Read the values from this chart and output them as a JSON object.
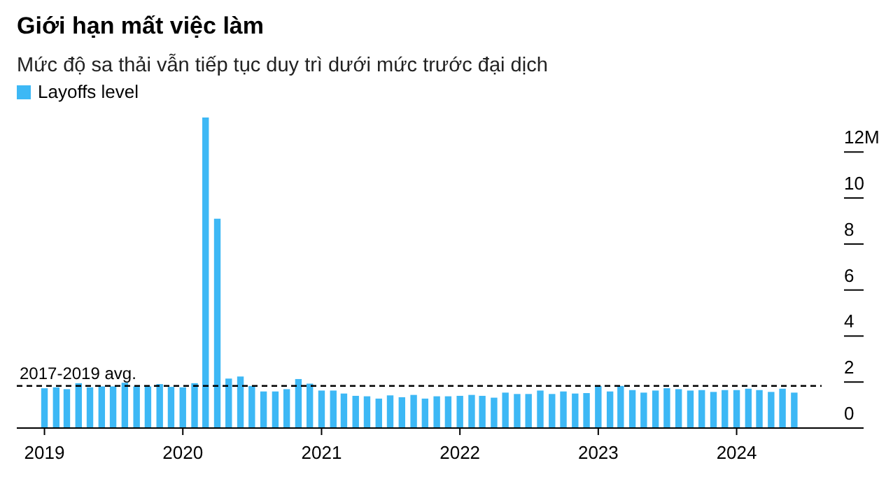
{
  "chart_data": {
    "type": "bar",
    "title": "Giới hạn mất việc làm",
    "subtitle": "Mức độ sa thải vẫn tiếp tục duy trì dưới mức trước đại dịch",
    "x": [
      "2019-01",
      "2019-02",
      "2019-03",
      "2019-04",
      "2019-05",
      "2019-06",
      "2019-07",
      "2019-08",
      "2019-09",
      "2019-10",
      "2019-11",
      "2019-12",
      "2020-01",
      "2020-02",
      "2020-03",
      "2020-04",
      "2020-05",
      "2020-06",
      "2020-07",
      "2020-08",
      "2020-09",
      "2020-10",
      "2020-11",
      "2020-12",
      "2021-01",
      "2021-02",
      "2021-03",
      "2021-04",
      "2021-05",
      "2021-06",
      "2021-07",
      "2021-08",
      "2021-09",
      "2021-10",
      "2021-11",
      "2021-12",
      "2022-01",
      "2022-02",
      "2022-03",
      "2022-04",
      "2022-05",
      "2022-06",
      "2022-07",
      "2022-08",
      "2022-09",
      "2022-10",
      "2022-11",
      "2022-12",
      "2023-01",
      "2023-02",
      "2023-03",
      "2023-04",
      "2023-05",
      "2023-06",
      "2023-07",
      "2023-08",
      "2023-09",
      "2023-10",
      "2023-11",
      "2023-12",
      "2024-01",
      "2024-02",
      "2024-03",
      "2024-04",
      "2024-05",
      "2024-06"
    ],
    "series": [
      {
        "name": "Layoffs level",
        "color": "#3db8f5",
        "values": [
          1.73,
          1.77,
          1.69,
          1.95,
          1.77,
          1.81,
          1.81,
          1.97,
          1.81,
          1.81,
          1.91,
          1.79,
          1.77,
          1.95,
          13.5,
          9.1,
          2.15,
          2.24,
          1.83,
          1.59,
          1.59,
          1.69,
          2.13,
          1.93,
          1.63,
          1.63,
          1.5,
          1.4,
          1.38,
          1.28,
          1.42,
          1.34,
          1.44,
          1.28,
          1.38,
          1.38,
          1.4,
          1.44,
          1.4,
          1.32,
          1.54,
          1.48,
          1.48,
          1.63,
          1.48,
          1.59,
          1.5,
          1.52,
          1.83,
          1.59,
          1.83,
          1.65,
          1.54,
          1.63,
          1.73,
          1.69,
          1.63,
          1.65,
          1.57,
          1.65,
          1.65,
          1.71,
          1.65,
          1.57,
          1.71,
          1.54
        ]
      }
    ],
    "xlim": [
      "2018-10-20",
      "2024-12-01"
    ],
    "xticks": [
      "2019",
      "2020",
      "2021",
      "2022",
      "2023",
      "2024"
    ],
    "ylim": [
      0,
      13.5
    ],
    "yticks": [
      0,
      2,
      4,
      6,
      8,
      10,
      {
        "value": 12,
        "label": "12M"
      }
    ],
    "ref_lines": [
      {
        "axis": "y",
        "value": 1.83,
        "label": "2017-2019 avg.",
        "color": "#000000",
        "line_style": "dashed"
      }
    ],
    "legend": "top left",
    "grid": false
  }
}
